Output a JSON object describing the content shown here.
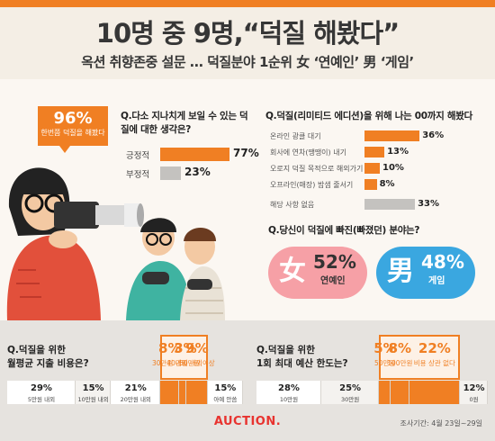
{
  "header": {
    "title": "10명 중 9명,“덕질 해봤다”",
    "subtitle": "옥션 취향존중 설문 … 덕질분야 1순위 女 ‘연예인’ 男 ‘게임’"
  },
  "callout": {
    "value": "96%",
    "label": "한번쯤 덕질을 해봤다"
  },
  "colors": {
    "accent": "#f07f23",
    "female": "#f6a0a6",
    "male": "#3aa7e0",
    "gray": "#c4c2bf",
    "darkgray": "#6d6c6b",
    "logo": "#e8332f"
  },
  "footer": {
    "logo": "AUCTION.",
    "survey_period": "조사기간: 4월 23일~29일"
  },
  "chart_data": [
    {
      "type": "bar",
      "title": "Q.다소 지나치게 보일 수 있는 덕질에 대한 생각은?",
      "categories": [
        "긍정적",
        "부정적"
      ],
      "values": [
        77,
        23
      ],
      "value_labels": [
        "77%",
        "23%"
      ]
    },
    {
      "type": "bar",
      "title": "Q.덕질(리미티드 에디션)을 위해 나는 00까지 해봤다",
      "categories": [
        "온라인 광클 대기",
        "회사에 연차(땡땡이) 내기",
        "오로지 덕질 목적으로 해외가기",
        "오프라인(매장) 밤샘 줄서기",
        "해당 사항 없음"
      ],
      "values": [
        36,
        13,
        10,
        8,
        33
      ],
      "value_labels": [
        "36%",
        "13%",
        "10%",
        "8%",
        "33%"
      ]
    },
    {
      "type": "bar",
      "title": "Q.당신이 덕질에 빠진(빠졌던) 분야는?",
      "series": [
        {
          "name": "女",
          "value": 52,
          "value_label": "52%",
          "label": "연예인"
        },
        {
          "name": "男",
          "value": 48,
          "value_label": "48%",
          "label": "게임"
        }
      ]
    },
    {
      "type": "bar",
      "title": "Q.덕질을 위한 월평균 지출 비용은?",
      "categories": [
        "5만원 내외",
        "10만원 내외",
        "20만원 내외",
        "30만원 내외",
        "40만원 내외",
        "50만원 이상",
        "아예 안씀"
      ],
      "values": [
        29,
        15,
        21,
        8,
        3,
        9,
        15
      ],
      "value_labels": [
        "29%",
        "15%",
        "21%",
        "8%",
        "3%",
        "9%",
        "15%"
      ],
      "highlight": [
        false,
        false,
        false,
        true,
        true,
        true,
        false
      ]
    },
    {
      "type": "bar",
      "title": "Q.덕질을 위한 1회 최대 예산 한도는?",
      "categories": [
        "10만원",
        "30만원",
        "50만원",
        "100만원",
        "비용 상관 없다",
        "0원"
      ],
      "values": [
        28,
        25,
        5,
        8,
        22,
        12
      ],
      "value_labels": [
        "28%",
        "25%",
        "5%",
        "8%",
        "22%",
        "12%"
      ],
      "highlight": [
        false,
        false,
        true,
        true,
        true,
        false
      ]
    }
  ]
}
